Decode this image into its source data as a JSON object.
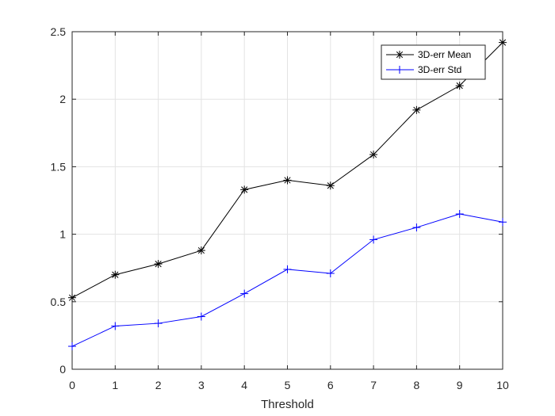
{
  "chart_data": {
    "type": "line",
    "title": "",
    "xlabel": "Threshold",
    "ylabel": "",
    "xlim": [
      0,
      10
    ],
    "ylim": [
      0,
      2.5
    ],
    "xticks": [
      "0",
      "1",
      "2",
      "3",
      "4",
      "5",
      "6",
      "7",
      "8",
      "9",
      "10"
    ],
    "yticks": [
      "0",
      "0.5",
      "1",
      "1.5",
      "2",
      "2.5"
    ],
    "grid": true,
    "legend_position": "top-right",
    "x": [
      0,
      1,
      2,
      3,
      4,
      5,
      6,
      7,
      8,
      9,
      10
    ],
    "series": [
      {
        "name": "3D-err Mean",
        "color": "#000000",
        "marker": "asterisk",
        "values": [
          0.53,
          0.7,
          0.78,
          0.88,
          1.33,
          1.4,
          1.36,
          1.59,
          1.92,
          2.1,
          2.42
        ]
      },
      {
        "name": "3D-err Std",
        "color": "#0000ff",
        "marker": "plus",
        "values": [
          0.17,
          0.32,
          0.34,
          0.39,
          0.56,
          0.74,
          0.71,
          0.96,
          1.05,
          1.15,
          1.09
        ]
      }
    ]
  }
}
